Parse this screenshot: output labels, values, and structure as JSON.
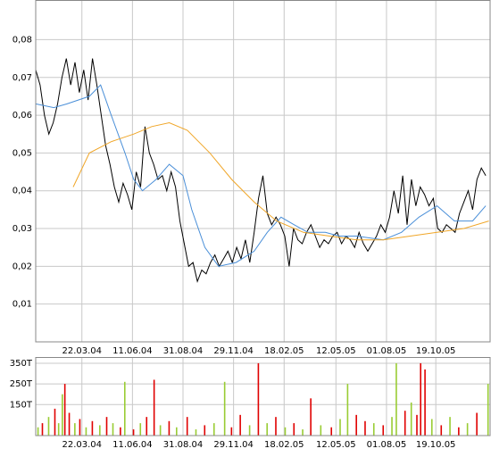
{
  "chart_data": [
    {
      "type": "line",
      "x": [
        0,
        7,
        14,
        21,
        28,
        35,
        42,
        49,
        56,
        63,
        70,
        77,
        84,
        91,
        98,
        105,
        112,
        119,
        126,
        133,
        140,
        147,
        154,
        161,
        168,
        175,
        182,
        189,
        196,
        203,
        210,
        217,
        224,
        231,
        238,
        245,
        252,
        259,
        266,
        273,
        280,
        287,
        294,
        301,
        308,
        315,
        322,
        329,
        336,
        343,
        350,
        357,
        364,
        371,
        378,
        385,
        392,
        399,
        406,
        413,
        420,
        427,
        434,
        441,
        448,
        455,
        462,
        469,
        476,
        483,
        490,
        497,
        504,
        511,
        518,
        525,
        532,
        539,
        546,
        553,
        560,
        567,
        574,
        581,
        588,
        595,
        602,
        609,
        616,
        623,
        630,
        637,
        644,
        651,
        658,
        665,
        672,
        679,
        686,
        693,
        700,
        707,
        714,
        721
      ],
      "xlim": [
        0,
        728
      ],
      "xticks": [
        {
          "value": 74,
          "label": "22.03.04"
        },
        {
          "value": 155,
          "label": "11.06.04"
        },
        {
          "value": 236,
          "label": "31.08.04"
        },
        {
          "value": 317,
          "label": "29.11.04"
        },
        {
          "value": 398,
          "label": "18.02.05"
        },
        {
          "value": 481,
          "label": "12.05.05"
        },
        {
          "value": 562,
          "label": "01.08.05"
        },
        {
          "value": 641,
          "label": "19.10.05"
        }
      ],
      "ylim": [
        0,
        0.0905
      ],
      "yticks": [
        {
          "value": 0.01,
          "label": "0,01"
        },
        {
          "value": 0.02,
          "label": "0,02"
        },
        {
          "value": 0.03,
          "label": "0,03"
        },
        {
          "value": 0.04,
          "label": "0,04"
        },
        {
          "value": 0.05,
          "label": "0,05"
        },
        {
          "value": 0.06,
          "label": "0,06"
        },
        {
          "value": 0.07,
          "label": "0,07"
        },
        {
          "value": 0.08,
          "label": "0,08"
        }
      ],
      "grid": true,
      "series": [
        {
          "color": "#000000",
          "values": [
            0.072,
            0.068,
            0.06,
            0.055,
            0.058,
            0.063,
            0.07,
            0.075,
            0.068,
            0.074,
            0.066,
            0.072,
            0.064,
            0.075,
            0.068,
            0.06,
            0.052,
            0.047,
            0.041,
            0.037,
            0.042,
            0.039,
            0.035,
            0.045,
            0.041,
            0.057,
            0.05,
            0.047,
            0.043,
            0.044,
            0.04,
            0.045,
            0.041,
            0.032,
            0.026,
            0.02,
            0.021,
            0.016,
            0.019,
            0.018,
            0.021,
            0.023,
            0.02,
            0.022,
            0.024,
            0.021,
            0.025,
            0.022,
            0.027,
            0.021,
            0.029,
            0.038,
            0.044,
            0.034,
            0.031,
            0.033,
            0.031,
            0.028,
            0.02,
            0.03,
            0.027,
            0.026,
            0.029,
            0.031,
            0.028,
            0.025,
            0.027,
            0.026,
            0.028,
            0.029,
            0.026,
            0.028,
            0.027,
            0.025,
            0.029,
            0.026,
            0.024,
            0.026,
            0.028,
            0.031,
            0.029,
            0.033,
            0.04,
            0.034,
            0.044,
            0.031,
            0.043,
            0.036,
            0.041,
            0.039,
            0.036,
            0.038,
            0.03,
            0.029,
            0.031,
            0.03,
            0.029,
            0.034,
            0.037,
            0.04,
            0.035,
            0.043,
            0.046,
            0.044
          ]
        },
        {
          "color": "#4a8fd8",
          "x": [
            0,
            29,
            50,
            86,
            104,
            121,
            143,
            157,
            171,
            193,
            214,
            236,
            250,
            271,
            293,
            321,
            350,
            371,
            393,
            414,
            436,
            464,
            486,
            514,
            557,
            586,
            614,
            643,
            671,
            700,
            721
          ],
          "values": [
            0.063,
            0.062,
            0.063,
            0.065,
            0.068,
            0.06,
            0.05,
            0.043,
            0.04,
            0.043,
            0.047,
            0.044,
            0.035,
            0.025,
            0.02,
            0.021,
            0.024,
            0.029,
            0.033,
            0.031,
            0.029,
            0.029,
            0.028,
            0.028,
            0.027,
            0.029,
            0.033,
            0.036,
            0.032,
            0.032,
            0.036
          ]
        },
        {
          "color": "#f0a628",
          "x": [
            60,
            86,
            121,
            157,
            186,
            214,
            243,
            279,
            314,
            350,
            386,
            429,
            471,
            514,
            557,
            600,
            643,
            686,
            726
          ],
          "values": [
            0.041,
            0.05,
            0.053,
            0.055,
            0.057,
            0.058,
            0.056,
            0.05,
            0.043,
            0.037,
            0.032,
            0.029,
            0.028,
            0.027,
            0.027,
            0.028,
            0.029,
            0.03,
            0.032
          ]
        }
      ]
    },
    {
      "type": "bar",
      "x": [
        4,
        11,
        21,
        31,
        37,
        43,
        47,
        54,
        63,
        71,
        81,
        91,
        103,
        114,
        124,
        136,
        143,
        157,
        168,
        178,
        190,
        200,
        214,
        226,
        243,
        257,
        271,
        286,
        303,
        314,
        328,
        343,
        357,
        371,
        385,
        400,
        414,
        428,
        441,
        457,
        474,
        488,
        500,
        514,
        528,
        542,
        557,
        571,
        578,
        592,
        602,
        611,
        617,
        624,
        635,
        650,
        664,
        678,
        692,
        707,
        725
      ],
      "values": [
        40000,
        60000,
        90000,
        130000,
        60000,
        200000,
        250000,
        110000,
        60000,
        80000,
        40000,
        70000,
        50000,
        90000,
        60000,
        40000,
        260000,
        30000,
        60000,
        90000,
        270000,
        50000,
        70000,
        40000,
        90000,
        30000,
        50000,
        60000,
        260000,
        40000,
        100000,
        50000,
        350000,
        60000,
        90000,
        40000,
        60000,
        30000,
        180000,
        50000,
        40000,
        80000,
        250000,
        100000,
        70000,
        60000,
        50000,
        90000,
        350000,
        120000,
        160000,
        100000,
        350000,
        320000,
        80000,
        50000,
        90000,
        40000,
        60000,
        110000,
        250000
      ],
      "colors": [
        "#99cc33",
        "#e00000",
        "#99cc33",
        "#e00000",
        "#99cc33",
        "#99cc33",
        "#e00000",
        "#e00000",
        "#99cc33",
        "#e00000",
        "#99cc33",
        "#e00000",
        "#99cc33",
        "#e00000",
        "#99cc33",
        "#e00000",
        "#99cc33",
        "#e00000",
        "#99cc33",
        "#e00000",
        "#e00000",
        "#99cc33",
        "#e00000",
        "#99cc33",
        "#e00000",
        "#99cc33",
        "#e00000",
        "#99cc33",
        "#99cc33",
        "#e00000",
        "#e00000",
        "#99cc33",
        "#e00000",
        "#99cc33",
        "#e00000",
        "#99cc33",
        "#e00000",
        "#99cc33",
        "#e00000",
        "#99cc33",
        "#e00000",
        "#99cc33",
        "#99cc33",
        "#e00000",
        "#e00000",
        "#99cc33",
        "#e00000",
        "#99cc33",
        "#99cc33",
        "#e00000",
        "#99cc33",
        "#e00000",
        "#e00000",
        "#e00000",
        "#99cc33",
        "#e00000",
        "#99cc33",
        "#e00000",
        "#99cc33",
        "#e00000",
        "#99cc33"
      ],
      "xlim": [
        0,
        728
      ],
      "xticks": [
        {
          "value": 74,
          "label": "22.03.04"
        },
        {
          "value": 155,
          "label": "11.06.04"
        },
        {
          "value": 236,
          "label": "31.08.04"
        },
        {
          "value": 317,
          "label": "29.11.04"
        },
        {
          "value": 398,
          "label": "18.02.05"
        },
        {
          "value": 481,
          "label": "12.05.05"
        },
        {
          "value": 562,
          "label": "01.08.05"
        },
        {
          "value": 641,
          "label": "19.10.05"
        }
      ],
      "ylim": [
        0,
        380000
      ],
      "yticks": [
        {
          "value": 150000,
          "label": "150T"
        },
        {
          "value": 250000,
          "label": "250T"
        },
        {
          "value": 350000,
          "label": "350T"
        }
      ],
      "grid": true
    }
  ]
}
